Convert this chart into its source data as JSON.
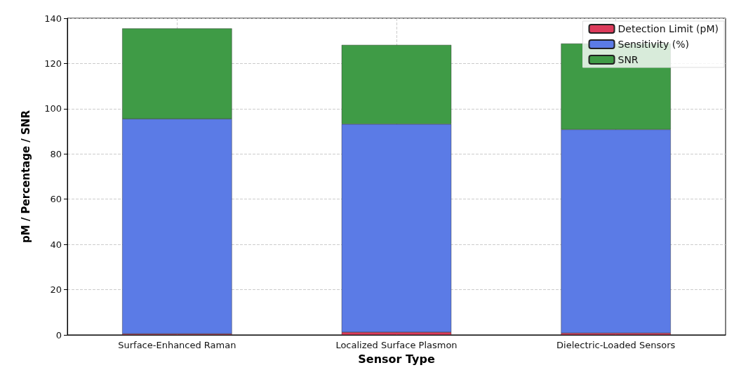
{
  "chart_data": {
    "type": "bar",
    "stacked": true,
    "xlabel": "Sensor Type",
    "ylabel": "pM / Percentage / SNR",
    "categories": [
      "Surface-Enhanced Raman",
      "Localized Surface Plasmon",
      "Dielectric-Loaded Sensors"
    ],
    "series": [
      {
        "name": "Detection Limit (pM)",
        "color": "#dc3a5a",
        "values": [
          0.5,
          1.2,
          0.8
        ]
      },
      {
        "name": "Sensitivity (%)",
        "color": "#5b7be6",
        "values": [
          95,
          92,
          90
        ]
      },
      {
        "name": "SNR",
        "color": "#3f9b46",
        "values": [
          40,
          35,
          38
        ]
      }
    ],
    "ylim": [
      0,
      140
    ],
    "yticks": [
      0,
      20,
      40,
      60,
      80,
      100,
      120,
      140
    ],
    "grid": true,
    "legend": "top right"
  }
}
